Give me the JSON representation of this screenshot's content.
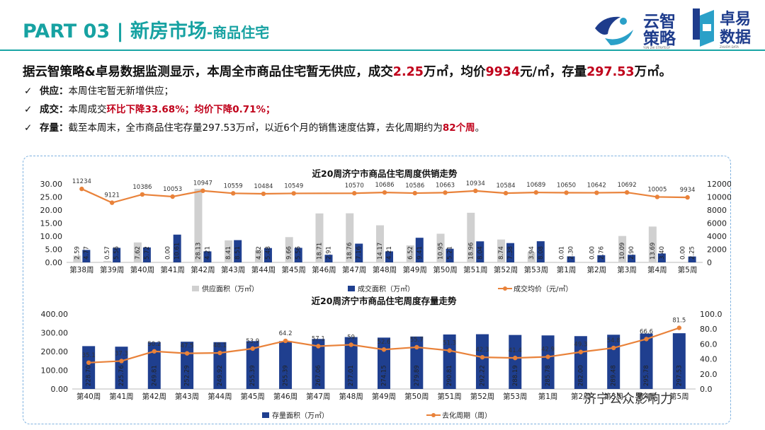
{
  "header": {
    "part": "PART 03",
    "separator": "|",
    "title": "新房市场",
    "subtitle": "-商品住宅",
    "logo1": {
      "line1": "云智",
      "line2": "策略",
      "small": "YUN ZHI STRATEGY"
    },
    "logo2": {
      "line1": "卓易",
      "line2": "数据",
      "small": "ZHUOYI DATA"
    }
  },
  "headline": {
    "p1": "据云智策略&卓易数据监测显示，本周全市商品住宅暂无供应，成交",
    "v1": "2.25",
    "p2": "万㎡，均价",
    "v2": "9934",
    "p3": "元/㎡，存量",
    "v3": "297.53",
    "p4": "万㎡。"
  },
  "bullets": [
    {
      "check": "✓",
      "key": "供应：",
      "text": "本周住宅暂无新增供应；",
      "red": ""
    },
    {
      "check": "✓",
      "key": "成交：",
      "text": "本周成交",
      "red": "环比下降33.68%；均价下降0.71%；"
    },
    {
      "check": "✓",
      "key": "存量：",
      "text": "截至本周末，全市商品住宅存量297.53万㎡，以近6个月的销售速度估算，去化周期约为",
      "red": "82个周",
      "tail": "。"
    }
  ],
  "chart_data": [
    {
      "type": "bar",
      "title": "近20周济宁市商品住宅周度供销走势",
      "categories": [
        "第38周",
        "第39周",
        "第40周",
        "第41周",
        "第42周",
        "第43周",
        "第44周",
        "第45周",
        "第46周",
        "第47周",
        "第48周",
        "第49周",
        "第50周",
        "第51周",
        "第52周",
        "第53周",
        "第1周",
        "第2周",
        "第3周",
        "第4周",
        "第5周"
      ],
      "series": [
        {
          "name": "供应面积（万㎡）",
          "kind": "bar",
          "axis": "left",
          "color": "#d0d0d0",
          "values": [
            2.59,
            0.57,
            7.62,
            0.0,
            28.13,
            8.41,
            4.82,
            9.66,
            18.71,
            18.76,
            14.17,
            6.52,
            10.95,
            18.96,
            8.74,
            3.94,
            0.01,
            0.0,
            10.09,
            13.69,
            0.0
          ]
        },
        {
          "name": "成交面积（万㎡）",
          "kind": "bar",
          "axis": "left",
          "color": "#1f3f8f",
          "values": [
            4.77,
            5.56,
            5.72,
            10.61,
            4.21,
            8.51,
            5.48,
            5.56,
            2.91,
            7.16,
            4.21,
            9.41,
            5.21,
            8.04,
            7.38,
            8.08,
            2.3,
            2.76,
            2.9,
            3.4,
            2.25
          ]
        },
        {
          "name": "成交均价（元/㎡）",
          "kind": "line",
          "axis": "right",
          "color": "#e9823a",
          "values": [
            11234,
            9121,
            10386,
            10053,
            10947,
            10559,
            10484,
            10549,
            null,
            10570,
            10686,
            10586,
            10663,
            10934,
            10584,
            10689,
            10650,
            10642,
            10692,
            10005,
            9934
          ]
        }
      ],
      "ylim": [
        0,
        30
      ],
      "yticks": [
        "0.00",
        "5.00",
        "10.00",
        "15.00",
        "20.00",
        "25.00",
        "30.00"
      ],
      "y2lim": [
        0,
        12000
      ],
      "y2ticks": [
        "0",
        "2000",
        "4000",
        "6000",
        "8000",
        "10000",
        "12000"
      ]
    },
    {
      "type": "bar",
      "title": "近20周济宁市商品住宅周度存量走势",
      "categories": [
        "第40周",
        "第41周",
        "第42周",
        "第43周",
        "第44周",
        "第45周",
        "第46周",
        "第47周",
        "第48周",
        "第49周",
        "第50周",
        "第51周",
        "第52周",
        "第53周",
        "第1周",
        "第2周",
        "第3周",
        "第4周",
        "第5周"
      ],
      "series": [
        {
          "name": "存量面积（万㎡）",
          "kind": "bar",
          "axis": "left",
          "color": "#1f3f8f",
          "values": [
            228.7,
            225.76,
            249.81,
            252.29,
            249.92,
            255.39,
            255.39,
            267.06,
            277.01,
            274.15,
            279.89,
            290.81,
            292.22,
            288.19,
            285.78,
            282.0,
            289.48,
            295.78,
            297.53
          ]
        },
        {
          "name": "去化周期（周）",
          "kind": "line",
          "axis": "right",
          "color": "#e9823a",
          "values": [
            35.1,
            37.3,
            50.2,
            47.5,
            48.1,
            53.9,
            64.2,
            57.1,
            59.0,
            52.6,
            55.7,
            51.3,
            42.3,
            41.4,
            42.9,
            49.3,
            54.8,
            66.6,
            81.5
          ],
          "label_hidden": [
            false,
            false,
            false,
            false,
            false,
            false,
            false,
            false,
            false,
            false,
            false,
            false,
            false,
            false,
            false,
            false,
            false,
            false,
            false
          ]
        }
      ],
      "ylim": [
        0,
        400
      ],
      "yticks": [
        "0.00",
        "100.00",
        "200.00",
        "300.00",
        "400.00"
      ],
      "y2lim": [
        0,
        100
      ],
      "y2ticks": [
        "0.0",
        "20.0",
        "40.0",
        "60.0",
        "80.0",
        "100.0"
      ]
    }
  ],
  "watermark": "济宁公众影响力"
}
